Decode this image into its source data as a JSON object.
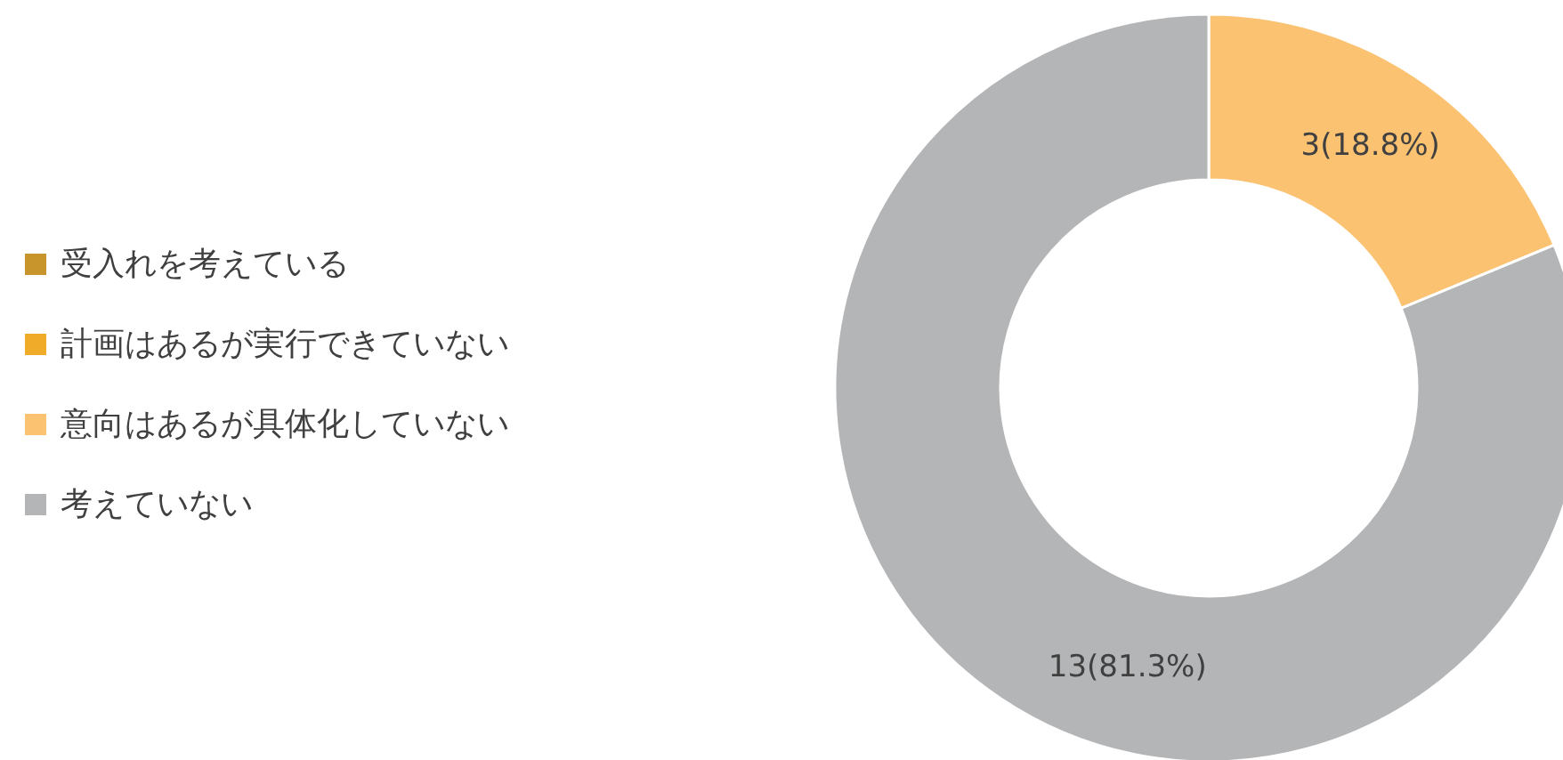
{
  "chart_data": {
    "type": "donut",
    "categories": [
      "受入れを考えている",
      "計画はあるが実行できていない",
      "意向はあるが具体化していない",
      "考えていない"
    ],
    "values": [
      0,
      0,
      3,
      13
    ],
    "colors": [
      "#c8952c",
      "#f0ac28",
      "#fbc272",
      "#b4b5b7"
    ],
    "value_labels": [
      null,
      null,
      "3(18.8%)",
      "13(81.3%)"
    ],
    "legend": "left"
  }
}
